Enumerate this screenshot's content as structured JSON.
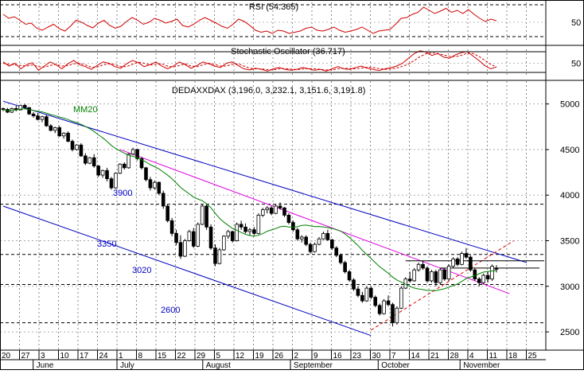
{
  "chart_data": {
    "type": "candlestick",
    "title": "DEDAXXDAX (3,196.0, 3,232.1, 3,151.6, 3,191.8)",
    "ylim": [
      2300,
      5250
    ],
    "y_ticks": [
      2500,
      3000,
      3500,
      4000,
      4500,
      5000
    ],
    "x_day_labels": [
      "20",
      "27",
      "3",
      "10",
      "17",
      "24",
      "1",
      "8",
      "15",
      "22",
      "29",
      "5",
      "12",
      "19",
      "26",
      "2",
      "9",
      "16",
      "23",
      "30",
      "7",
      "14",
      "21",
      "28",
      "4",
      "11",
      "18",
      "25"
    ],
    "months": [
      {
        "label": "June",
        "index": 1.7
      },
      {
        "label": "July",
        "index": 6.0
      },
      {
        "label": "August",
        "index": 10.4
      },
      {
        "label": "September",
        "index": 14.9
      },
      {
        "label": "October",
        "index": 19.4
      },
      {
        "label": "November",
        "index": 23.6
      }
    ],
    "ma_label": "MM20",
    "level_labels": [
      "3900",
      "3350",
      "3020",
      "2600"
    ],
    "levels": [
      3900,
      3350,
      3020,
      2600
    ],
    "colors": {
      "up": "#ffffff",
      "down": "#000000",
      "ma": "#008000",
      "channel": "#0000c0",
      "trend": "#e000e0",
      "oscillator": "#d00000"
    },
    "rsi": {
      "label": "RSI (54.365)",
      "ylim": [
        0,
        100
      ],
      "tick": 50,
      "values": [
        70,
        60,
        64,
        55,
        45,
        48,
        35,
        30,
        38,
        45,
        34,
        28,
        40,
        55,
        50,
        42,
        36,
        48,
        55,
        42,
        35,
        40,
        52,
        62,
        55,
        45,
        50,
        60,
        55,
        48,
        52,
        58,
        42,
        38,
        45,
        55,
        62,
        55,
        48,
        40,
        35,
        45,
        58,
        52,
        42,
        30,
        25,
        28,
        22,
        30,
        28,
        22,
        25,
        28,
        35,
        38,
        30,
        28,
        32,
        38,
        30,
        25,
        28,
        32,
        38,
        30,
        22,
        28,
        30,
        32,
        45,
        60,
        62,
        70,
        75,
        88,
        80,
        72,
        78,
        85,
        75,
        80,
        72,
        82,
        70,
        60,
        52,
        58,
        54
      ]
    },
    "stochastic": {
      "label": "Stochastic Oscillator (36.717)",
      "ylim": [
        0,
        100
      ],
      "tick": 50,
      "k": [
        55,
        40,
        50,
        30,
        45,
        52,
        25,
        40,
        55,
        45,
        30,
        48,
        60,
        45,
        38,
        28,
        42,
        55,
        50,
        38,
        32,
        48,
        60,
        52,
        38,
        45,
        55,
        40,
        30,
        40,
        55,
        45,
        32,
        42,
        55,
        48,
        40,
        35,
        50,
        55,
        42,
        30,
        26,
        32,
        28,
        22,
        30,
        35,
        28,
        25,
        28,
        35,
        30,
        25,
        28,
        22,
        30,
        38,
        30,
        28,
        35,
        40,
        32,
        28,
        24,
        30,
        34,
        40,
        50,
        68,
        85,
        95,
        90,
        78,
        85,
        72,
        68,
        80,
        88,
        92,
        76,
        60,
        42,
        30,
        36.7
      ],
      "d": [
        50,
        46,
        44,
        42,
        40,
        44,
        38,
        36,
        42,
        46,
        40,
        42,
        48,
        50,
        44,
        36,
        36,
        44,
        48,
        46,
        38,
        38,
        46,
        54,
        50,
        44,
        46,
        48,
        40,
        36,
        42,
        48,
        40,
        38,
        44,
        50,
        46,
        40,
        40,
        46,
        48,
        40,
        32,
        30,
        30,
        27,
        26,
        30,
        31,
        29,
        27,
        29,
        31,
        30,
        28,
        26,
        26,
        30,
        32,
        31,
        30,
        33,
        36,
        35,
        31,
        28,
        29,
        33,
        39,
        47,
        60,
        74,
        84,
        88,
        85,
        80,
        75,
        74,
        78,
        86,
        85,
        75,
        61,
        46,
        37
      ]
    },
    "ohlc": [
      [
        4950,
        4960,
        4920,
        4940
      ],
      [
        4940,
        4955,
        4900,
        4910
      ],
      [
        4910,
        4960,
        4900,
        4950
      ],
      [
        4950,
        4980,
        4920,
        4935
      ],
      [
        4935,
        4990,
        4930,
        4985
      ],
      [
        4985,
        5000,
        4950,
        4960
      ],
      [
        4960,
        4965,
        4880,
        4890
      ],
      [
        4890,
        4910,
        4850,
        4870
      ],
      [
        4870,
        4900,
        4820,
        4830
      ],
      [
        4830,
        4870,
        4800,
        4860
      ],
      [
        4860,
        4880,
        4750,
        4760
      ],
      [
        4760,
        4780,
        4700,
        4710
      ],
      [
        4710,
        4750,
        4680,
        4740
      ],
      [
        4740,
        4760,
        4640,
        4650
      ],
      [
        4650,
        4690,
        4620,
        4680
      ],
      [
        4680,
        4700,
        4580,
        4590
      ],
      [
        4590,
        4610,
        4480,
        4500
      ],
      [
        4500,
        4560,
        4490,
        4550
      ],
      [
        4550,
        4570,
        4420,
        4430
      ],
      [
        4430,
        4460,
        4330,
        4350
      ],
      [
        4350,
        4420,
        4340,
        4410
      ],
      [
        4410,
        4450,
        4300,
        4320
      ],
      [
        4320,
        4330,
        4200,
        4220
      ],
      [
        4220,
        4280,
        4190,
        4270
      ],
      [
        4270,
        4300,
        4150,
        4180
      ],
      [
        4180,
        4200,
        4060,
        4080
      ],
      [
        4080,
        4250,
        4070,
        4240
      ],
      [
        4240,
        4350,
        4230,
        4340
      ],
      [
        4340,
        4360,
        4280,
        4300
      ],
      [
        4300,
        4460,
        4290,
        4450
      ],
      [
        4450,
        4520,
        4440,
        4500
      ],
      [
        4500,
        4510,
        4380,
        4400
      ],
      [
        4400,
        4420,
        4280,
        4300
      ],
      [
        4300,
        4310,
        4150,
        4170
      ],
      [
        4170,
        4200,
        4050,
        4080
      ],
      [
        4080,
        4160,
        4060,
        4140
      ],
      [
        4140,
        4150,
        4000,
        4020
      ],
      [
        4020,
        4050,
        3850,
        3880
      ],
      [
        3880,
        3900,
        3700,
        3720
      ],
      [
        3720,
        3750,
        3550,
        3580
      ],
      [
        3580,
        3620,
        3450,
        3480
      ],
      [
        3480,
        3560,
        3300,
        3330
      ],
      [
        3330,
        3520,
        3320,
        3500
      ],
      [
        3500,
        3620,
        3490,
        3600
      ],
      [
        3600,
        3640,
        3420,
        3440
      ],
      [
        3440,
        3700,
        3430,
        3680
      ],
      [
        3680,
        3900,
        3670,
        3880
      ],
      [
        3880,
        3900,
        3620,
        3650
      ],
      [
        3650,
        3680,
        3400,
        3420
      ],
      [
        3420,
        3460,
        3220,
        3250
      ],
      [
        3250,
        3420,
        3240,
        3400
      ],
      [
        3400,
        3560,
        3390,
        3550
      ],
      [
        3550,
        3620,
        3520,
        3600
      ],
      [
        3600,
        3610,
        3480,
        3500
      ],
      [
        3500,
        3700,
        3490,
        3680
      ],
      [
        3680,
        3720,
        3620,
        3650
      ],
      [
        3650,
        3690,
        3580,
        3600
      ],
      [
        3600,
        3640,
        3560,
        3620
      ],
      [
        3620,
        3650,
        3560,
        3580
      ],
      [
        3580,
        3800,
        3570,
        3780
      ],
      [
        3780,
        3860,
        3760,
        3840
      ],
      [
        3840,
        3880,
        3800,
        3860
      ],
      [
        3860,
        3880,
        3780,
        3800
      ],
      [
        3800,
        3900,
        3790,
        3880
      ],
      [
        3880,
        3920,
        3840,
        3860
      ],
      [
        3860,
        3870,
        3760,
        3780
      ],
      [
        3780,
        3800,
        3680,
        3700
      ],
      [
        3700,
        3720,
        3600,
        3620
      ],
      [
        3620,
        3640,
        3500,
        3520
      ],
      [
        3520,
        3560,
        3480,
        3540
      ],
      [
        3540,
        3560,
        3440,
        3460
      ],
      [
        3460,
        3480,
        3360,
        3380
      ],
      [
        3380,
        3480,
        3370,
        3460
      ],
      [
        3460,
        3540,
        3450,
        3520
      ],
      [
        3520,
        3600,
        3510,
        3580
      ],
      [
        3580,
        3620,
        3500,
        3510
      ],
      [
        3510,
        3520,
        3400,
        3420
      ],
      [
        3420,
        3440,
        3320,
        3340
      ],
      [
        3340,
        3360,
        3240,
        3260
      ],
      [
        3260,
        3280,
        3140,
        3160
      ],
      [
        3160,
        3180,
        3050,
        3070
      ],
      [
        3070,
        3090,
        2950,
        2970
      ],
      [
        2970,
        3000,
        2880,
        2900
      ],
      [
        2900,
        2940,
        2820,
        2840
      ],
      [
        2840,
        3000,
        2830,
        2980
      ],
      [
        2980,
        3000,
        2860,
        2880
      ],
      [
        2880,
        2900,
        2770,
        2790
      ],
      [
        2790,
        2810,
        2680,
        2700
      ],
      [
        2700,
        2860,
        2690,
        2840
      ],
      [
        2840,
        2900,
        2780,
        2800
      ],
      [
        2800,
        2820,
        2560,
        2600
      ],
      [
        2600,
        2780,
        2580,
        2760
      ],
      [
        2760,
        3000,
        2750,
        2980
      ],
      [
        2980,
        3100,
        2970,
        3080
      ],
      [
        3080,
        3160,
        3040,
        3060
      ],
      [
        3060,
        3200,
        3050,
        3180
      ],
      [
        3180,
        3260,
        3160,
        3240
      ],
      [
        3240,
        3280,
        3180,
        3200
      ],
      [
        3200,
        3220,
        3040,
        3060
      ],
      [
        3060,
        3180,
        3040,
        3160
      ],
      [
        3160,
        3180,
        3000,
        3040
      ],
      [
        3040,
        3200,
        3020,
        3180
      ],
      [
        3180,
        3200,
        3060,
        3080
      ],
      [
        3080,
        3240,
        3060,
        3220
      ],
      [
        3220,
        3320,
        3200,
        3300
      ],
      [
        3300,
        3320,
        3220,
        3240
      ],
      [
        3240,
        3380,
        3230,
        3360
      ],
      [
        3360,
        3420,
        3300,
        3320
      ],
      [
        3320,
        3340,
        3160,
        3180
      ],
      [
        3180,
        3200,
        3060,
        3080
      ],
      [
        3080,
        3100,
        3000,
        3040
      ],
      [
        3040,
        3140,
        3020,
        3120
      ],
      [
        3120,
        3160,
        3040,
        3080
      ],
      [
        3080,
        3240,
        3060,
        3220
      ],
      [
        3196,
        3232.1,
        3151.6,
        3191.8
      ]
    ]
  }
}
